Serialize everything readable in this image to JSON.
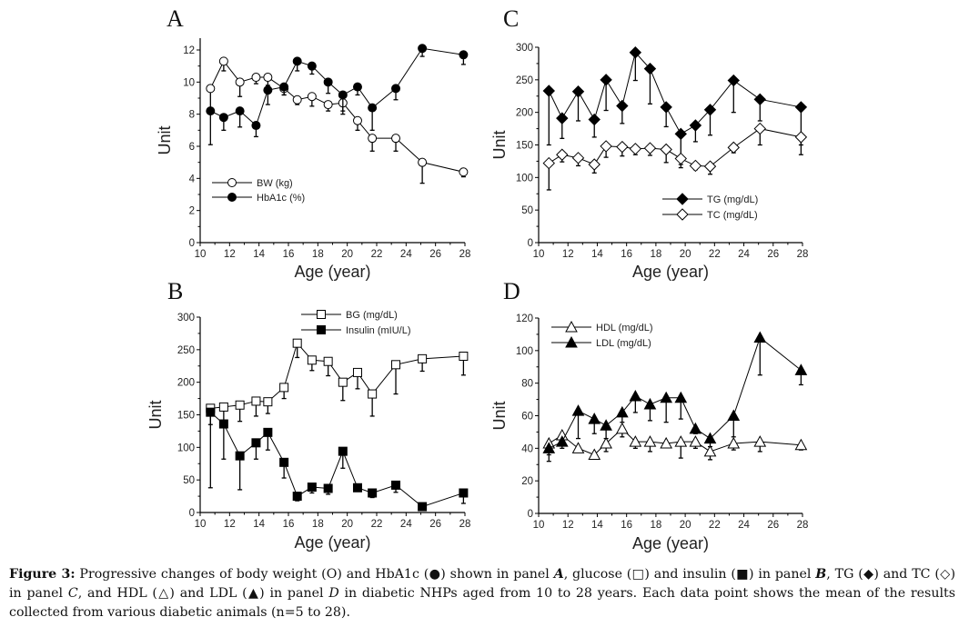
{
  "figure": {
    "caption_label": "Figure 3:",
    "caption_parts": [
      "Progressive changes of body weight (",
      "O",
      ") and HbA1c (",
      "●",
      ") shown in panel ",
      "A",
      ", glucose (",
      "□",
      ") and insulin (",
      "■",
      ") in panel ",
      "B",
      ", TG (",
      "◆",
      ") and TC (",
      "◇",
      ") in panel ",
      "C",
      ", and HDL (",
      "△",
      ") and LDL (",
      "▲",
      ") in panel ",
      "D",
      " in diabetic NHPs aged from 10 to 28 years. Each data point shows the mean of the results collected from various diabetic animals (n=5 to 28)."
    ]
  },
  "chart_data": [
    {
      "panel": "A",
      "type": "line",
      "title": "",
      "xlabel": "Age (year)",
      "ylabel": "Unit",
      "xlim": [
        10,
        28
      ],
      "ylim": [
        0,
        12.8
      ],
      "xticks": [
        10,
        12,
        14,
        16,
        18,
        20,
        22,
        24,
        26,
        28
      ],
      "yticks": [
        0,
        2,
        4,
        6,
        8,
        10,
        12
      ],
      "legend_position": "bottom-left",
      "x": [
        10.7,
        11.6,
        12.7,
        13.8,
        14.6,
        15.7,
        16.6,
        17.6,
        18.7,
        19.7,
        20.7,
        21.7,
        23.3,
        25.1,
        27.9
      ],
      "series": [
        {
          "name": "BW (kg)",
          "marker": "circle-open",
          "values": [
            9.6,
            11.3,
            10.0,
            10.3,
            10.3,
            9.6,
            8.9,
            9.1,
            8.6,
            8.7,
            7.6,
            6.5,
            6.5,
            5.0,
            4.4
          ],
          "err_low": [
            8.2,
            10.7,
            9.1,
            9.9,
            9.8,
            9.2,
            8.6,
            8.5,
            8.2,
            8.0,
            7.0,
            5.7,
            5.7,
            3.7,
            4.1
          ]
        },
        {
          "name": "HbA1c (%)",
          "marker": "circle-filled",
          "values": [
            8.2,
            7.8,
            8.2,
            7.3,
            9.5,
            9.7,
            11.3,
            11.0,
            10.0,
            9.2,
            9.7,
            8.4,
            9.6,
            12.1,
            11.7
          ],
          "err_low": [
            6.1,
            7.0,
            7.2,
            6.6,
            8.6,
            9.2,
            10.7,
            10.5,
            9.3,
            8.2,
            9.2,
            7.0,
            8.9,
            11.6,
            11.1
          ]
        }
      ]
    },
    {
      "panel": "B",
      "type": "line",
      "title": "",
      "xlabel": "Age (year)",
      "ylabel": "Unit",
      "xlim": [
        10,
        28
      ],
      "ylim": [
        0,
        300
      ],
      "xticks": [
        10,
        12,
        14,
        16,
        18,
        20,
        22,
        24,
        26,
        28
      ],
      "yticks": [
        0,
        50,
        100,
        150,
        200,
        250,
        300
      ],
      "legend_position": "top-right",
      "x": [
        10.7,
        11.6,
        12.7,
        13.8,
        14.6,
        15.7,
        16.6,
        17.6,
        18.7,
        19.7,
        20.7,
        21.7,
        23.3,
        25.1,
        27.9
      ],
      "series": [
        {
          "name": "BG (mg/dL)",
          "marker": "square-open",
          "values": [
            160,
            162,
            165,
            171,
            170,
            192,
            260,
            234,
            232,
            200,
            215,
            182,
            227,
            236,
            240
          ],
          "err_low": [
            135,
            140,
            140,
            148,
            152,
            175,
            238,
            218,
            210,
            172,
            190,
            148,
            182,
            217,
            211
          ]
        },
        {
          "name": "Insulin (mIU/L)",
          "marker": "square-filled",
          "values": [
            154,
            136,
            87,
            107,
            123,
            77,
            25,
            39,
            37,
            94,
            38,
            30,
            42,
            9,
            30
          ],
          "err_low": [
            38,
            82,
            35,
            82,
            96,
            53,
            18,
            30,
            28,
            68,
            33,
            23,
            31,
            6,
            14
          ]
        }
      ]
    },
    {
      "panel": "C",
      "type": "line",
      "title": "",
      "xlabel": "Age (year)",
      "ylabel": "Unit",
      "xlim": [
        10,
        28
      ],
      "ylim": [
        0,
        300
      ],
      "xticks": [
        10,
        12,
        14,
        16,
        18,
        20,
        22,
        24,
        26,
        28
      ],
      "yticks": [
        0,
        50,
        100,
        150,
        200,
        250,
        300
      ],
      "legend_position": "bottom-right",
      "x": [
        10.7,
        11.6,
        12.7,
        13.8,
        14.6,
        15.7,
        16.6,
        17.6,
        18.7,
        19.7,
        20.7,
        21.7,
        23.3,
        25.1,
        27.9
      ],
      "series": [
        {
          "name": "TG (mg/dL)",
          "marker": "diamond-filled",
          "values": [
            233,
            191,
            232,
            189,
            250,
            210,
            292,
            267,
            208,
            167,
            180,
            204,
            249,
            220,
            208
          ],
          "err_low": [
            150,
            160,
            187,
            162,
            203,
            183,
            249,
            213,
            178,
            120,
            155,
            165,
            200,
            187,
            135
          ]
        },
        {
          "name": "TC (mg/dL)",
          "marker": "diamond-open",
          "values": [
            122,
            135,
            130,
            120,
            148,
            147,
            144,
            145,
            143,
            129,
            118,
            117,
            146,
            175,
            162
          ],
          "err_low": [
            81,
            124,
            118,
            107,
            131,
            133,
            135,
            134,
            123,
            115,
            112,
            105,
            138,
            150,
            150
          ]
        }
      ]
    },
    {
      "panel": "D",
      "type": "line",
      "title": "",
      "xlabel": "Age (year)",
      "ylabel": "Unit",
      "xlim": [
        10,
        28
      ],
      "ylim": [
        0,
        120
      ],
      "xticks": [
        10,
        12,
        14,
        16,
        18,
        20,
        22,
        24,
        26,
        28
      ],
      "yticks": [
        0,
        20,
        40,
        60,
        80,
        100,
        120
      ],
      "legend_position": "top-left",
      "x": [
        10.7,
        11.6,
        12.7,
        13.8,
        14.6,
        15.7,
        16.6,
        17.6,
        18.7,
        19.7,
        20.7,
        21.7,
        23.3,
        25.1,
        27.9
      ],
      "series": [
        {
          "name": "HDL (mg/dL)",
          "marker": "triangle-open",
          "values": [
            43,
            48,
            40,
            36,
            43,
            52,
            44,
            44,
            43,
            44,
            44,
            38,
            43,
            44,
            42
          ],
          "err_low": [
            36,
            45,
            38,
            34,
            38,
            47,
            40,
            38,
            41,
            34,
            40,
            33,
            39,
            38,
            39
          ]
        },
        {
          "name": "LDL (mg/dL)",
          "marker": "triangle-filled",
          "values": [
            40,
            44,
            63,
            58,
            54,
            62,
            72,
            67,
            71,
            71,
            52,
            46,
            60,
            108,
            88
          ],
          "err_low": [
            32,
            40,
            46,
            49,
            46,
            56,
            62,
            57,
            56,
            58,
            49,
            41,
            47,
            85,
            79
          ]
        }
      ]
    }
  ]
}
